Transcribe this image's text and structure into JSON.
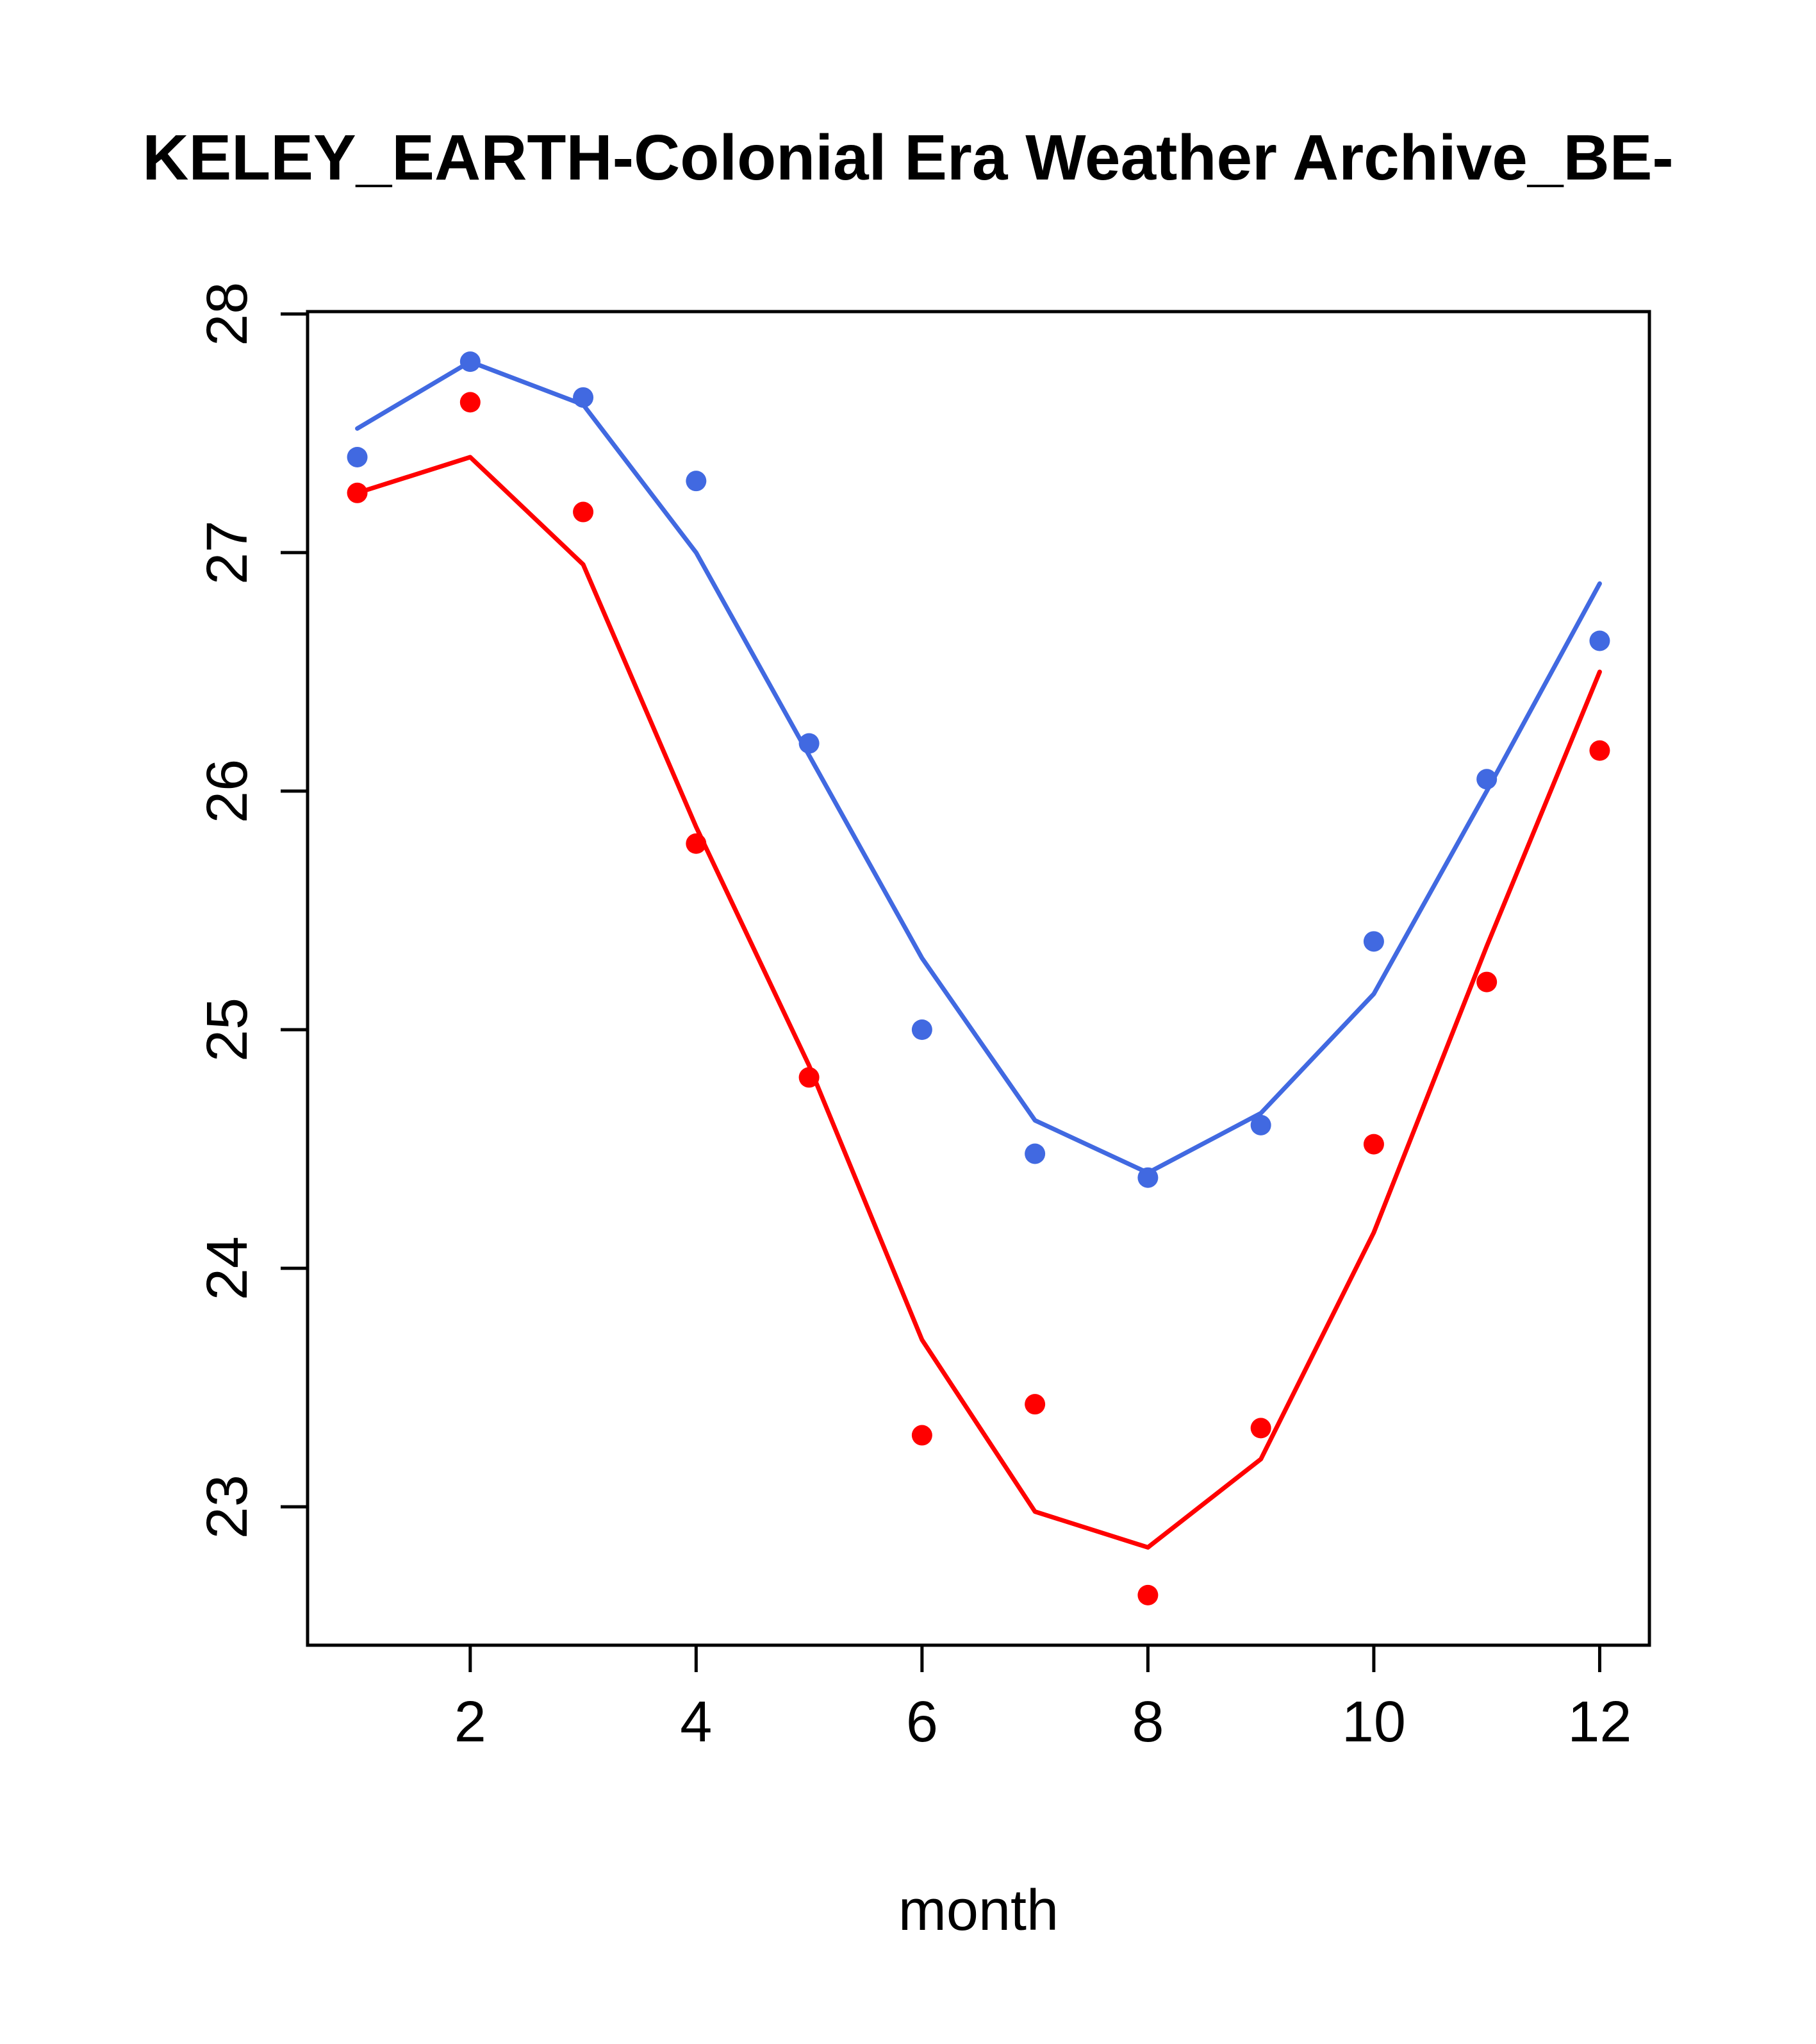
{
  "chart_data": {
    "type": "scatter",
    "title": "KELEY_EARTH-Colonial Era Weather Archive_BE-",
    "xlabel": "month",
    "ylabel": "",
    "x": [
      1,
      2,
      3,
      4,
      5,
      6,
      7,
      8,
      9,
      10,
      11,
      12
    ],
    "xlim": [
      0.56,
      12.44
    ],
    "ylim": [
      22.42,
      28.01
    ],
    "xticks": [
      2,
      4,
      6,
      8,
      10,
      12
    ],
    "yticks": [
      23,
      24,
      25,
      26,
      27,
      28
    ],
    "grid": false,
    "legend": "none",
    "series": [
      {
        "name": "blue-series",
        "color": "#4169E1",
        "points": [
          27.4,
          27.8,
          27.65,
          27.3,
          26.2,
          25.0,
          24.48,
          24.38,
          24.6,
          25.37,
          26.05,
          26.63
        ],
        "line": [
          27.52,
          27.8,
          27.62,
          27.0,
          26.15,
          25.3,
          24.62,
          24.4,
          24.65,
          25.15,
          26.0,
          26.87
        ]
      },
      {
        "name": "red-series",
        "color": "#FF0000",
        "points": [
          27.25,
          27.63,
          27.17,
          25.78,
          24.8,
          23.3,
          23.43,
          22.63,
          23.33,
          24.52,
          25.2,
          26.17
        ],
        "line": [
          27.25,
          27.4,
          26.95,
          25.85,
          24.85,
          23.7,
          22.98,
          22.83,
          23.2,
          24.15,
          25.35,
          26.5
        ]
      }
    ]
  }
}
